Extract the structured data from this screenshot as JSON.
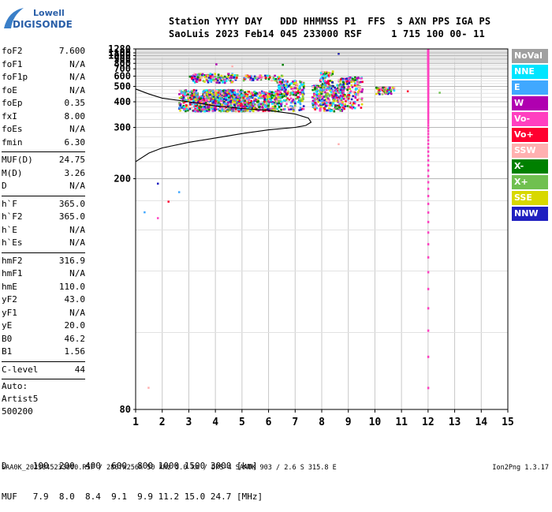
{
  "logo": {
    "line1": "Lowell",
    "line2": "DIGISONDE"
  },
  "header": {
    "line1": "Station YYYY DAY   DDD HHMMSS P1  FFS  S AXN PPS IGA PS",
    "line2": "SaoLuis 2023 Feb14 045 233000 RSF     1 715 100 00- 11"
  },
  "params": [
    {
      "label": "foF2",
      "value": "7.600"
    },
    {
      "label": "foF1",
      "value": "N/A"
    },
    {
      "label": "foF1p",
      "value": "N/A"
    },
    {
      "label": "foE",
      "value": "N/A"
    },
    {
      "label": "foEp",
      "value": "0.35"
    },
    {
      "label": "fxI",
      "value": "8.00"
    },
    {
      "label": "foEs",
      "value": "N/A"
    },
    {
      "label": "fmin",
      "value": "6.30"
    },
    {
      "sep": true
    },
    {
      "label": "MUF(D)",
      "value": "24.75"
    },
    {
      "label": "M(D)",
      "value": "3.26"
    },
    {
      "label": "D",
      "value": "N/A"
    },
    {
      "sep": true
    },
    {
      "label": "h`F",
      "value": "365.0"
    },
    {
      "label": "h`F2",
      "value": "365.0"
    },
    {
      "label": "h`E",
      "value": "N/A"
    },
    {
      "label": "h`Es",
      "value": "N/A"
    },
    {
      "sep": true
    },
    {
      "label": "hmF2",
      "value": "316.9"
    },
    {
      "label": "hmF1",
      "value": "N/A"
    },
    {
      "label": "hmE",
      "value": "110.0"
    },
    {
      "label": "yF2",
      "value": "43.0"
    },
    {
      "label": "yF1",
      "value": "N/A"
    },
    {
      "label": "yE",
      "value": "20.0"
    },
    {
      "label": "B0",
      "value": "46.2"
    },
    {
      "label": "B1",
      "value": "1.56"
    },
    {
      "sep": true
    },
    {
      "label": "C-level",
      "value": "44"
    },
    {
      "sep": true
    }
  ],
  "auto": {
    "line1": "Auto:",
    "line2": "Artist5",
    "line3": "500200"
  },
  "legend": [
    {
      "label": "NoVal",
      "color": "#a0a0a0"
    },
    {
      "label": "NNE",
      "color": "#00e5ff"
    },
    {
      "label": "E",
      "color": "#40a8ff"
    },
    {
      "label": "W",
      "color": "#b000b0"
    },
    {
      "label": "Vo-",
      "color": "#ff40c0"
    },
    {
      "label": "Vo+",
      "color": "#ff0030"
    },
    {
      "label": "SSW",
      "color": "#ffb0b0"
    },
    {
      "label": "X-",
      "color": "#008000"
    },
    {
      "label": "X+",
      "color": "#70c050"
    },
    {
      "label": "SSE",
      "color": "#d8d800"
    },
    {
      "label": "NNW",
      "color": "#2020c0"
    }
  ],
  "muf_table": {
    "d_row": "D     100  200  400  600  800 1000 1500 3000 [km]",
    "muf_row": "MUF   7.9  8.0  8.4  9.1  9.9 11.2 15.0 24.7 [MHz]"
  },
  "footer": {
    "text": "SAA0K_2023045233000.RSF / 280fx256h 50 kHz 5.0 km / DPS-4 SAA0K 903 / 2.6 S 315.8 E",
    "version": "Ion2Png 1.3.17"
  },
  "chart_data": {
    "type": "scatter",
    "title": "",
    "xlabel": "",
    "ylabel": "",
    "xlim": [
      1,
      15
    ],
    "x_ticks": [
      1,
      2,
      3,
      4,
      5,
      6,
      7,
      8,
      9,
      10,
      11,
      12,
      13,
      14,
      15
    ],
    "y_ticks": [
      80,
      200,
      300,
      400,
      500,
      600,
      700,
      800,
      900,
      1000,
      1100,
      1280
    ],
    "y_scale": "reciprocal",
    "grid": true,
    "blobs": [
      {
        "x": [
          2.6,
          3.3
        ],
        "y": [
          360,
          480
        ],
        "n": 160
      },
      {
        "x": [
          3.2,
          5.2
        ],
        "y": [
          360,
          440
        ],
        "n": 700
      },
      {
        "x": [
          3.5,
          5.0
        ],
        "y": [
          440,
          480
        ],
        "n": 200
      },
      {
        "x": [
          3.0,
          4.8
        ],
        "y": [
          540,
          640
        ],
        "n": 150
      },
      {
        "x": [
          4.8,
          6.3
        ],
        "y": [
          360,
          470
        ],
        "n": 350
      },
      {
        "x": [
          5.0,
          6.5
        ],
        "y": [
          560,
          620
        ],
        "n": 70
      },
      {
        "x": [
          6.3,
          7.3
        ],
        "y": [
          360,
          560
        ],
        "n": 230
      },
      {
        "x": [
          7.6,
          8.8
        ],
        "y": [
          360,
          520
        ],
        "n": 330
      },
      {
        "x": [
          7.9,
          8.4
        ],
        "y": [
          520,
          680
        ],
        "n": 50
      },
      {
        "x": [
          8.6,
          9.5
        ],
        "y": [
          370,
          600
        ],
        "n": 200
      },
      {
        "x": [
          10.0,
          10.7
        ],
        "y": [
          450,
          500
        ],
        "n": 60
      }
    ],
    "sparse_points": [
      {
        "x": 1.45,
        "y": 85
      },
      {
        "x": 1.8,
        "y": 160
      },
      {
        "x": 1.8,
        "y": 195
      },
      {
        "x": 2.2,
        "y": 175
      },
      {
        "x": 2.6,
        "y": 185
      },
      {
        "x": 1.3,
        "y": 165
      },
      {
        "x": 6.5,
        "y": 790
      },
      {
        "x": 8.6,
        "y": 1110
      },
      {
        "x": 8.6,
        "y": 1100
      },
      {
        "x": 8.6,
        "y": 260
      },
      {
        "x": 4.6,
        "y": 760
      },
      {
        "x": 4.0,
        "y": 800
      },
      {
        "x": 11.2,
        "y": 470
      },
      {
        "x": 12.4,
        "y": 460
      }
    ],
    "vertical_line": {
      "x": 12.0,
      "y": [
        80,
        1280
      ],
      "color": "#ff40c0"
    },
    "profile_line": {
      "x": [
        1.0,
        1.5,
        2.0,
        3.0,
        4.0,
        5.0,
        6.0,
        7.0,
        7.4,
        7.6,
        7.5,
        7.0,
        6.0,
        5.0,
        4.0,
        3.0,
        2.0,
        1.5,
        1.0
      ],
      "y": [
        225,
        240,
        250,
        262,
        272,
        283,
        293,
        300,
        306,
        316,
        330,
        345,
        360,
        368,
        380,
        400,
        420,
        445,
        480
      ]
    }
  }
}
